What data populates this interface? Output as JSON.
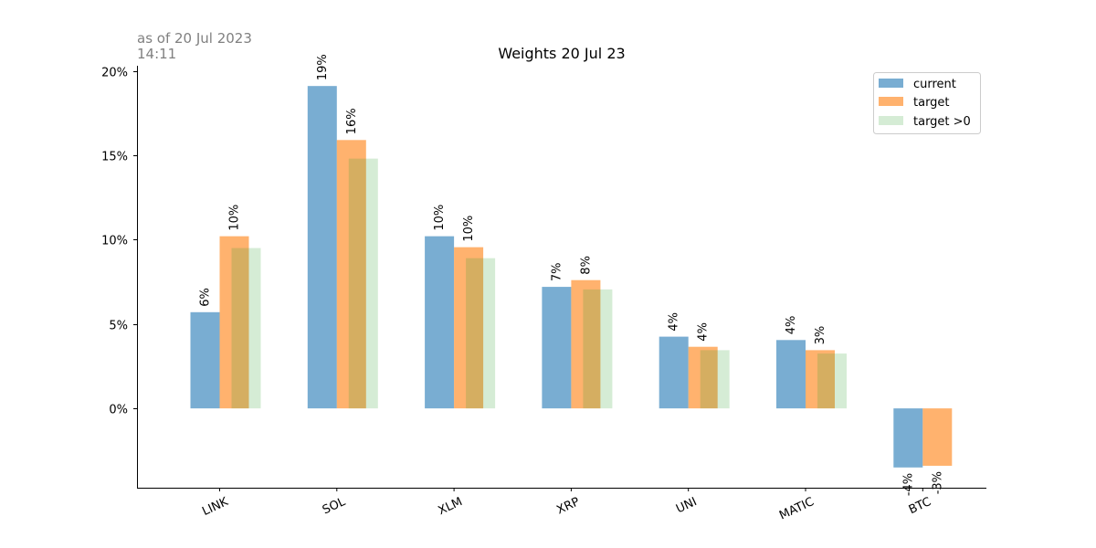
{
  "timestamp": {
    "line1": "as of 20 Jul 2023",
    "line2": "14:11"
  },
  "chart_data": {
    "type": "bar",
    "title": "Weights 20 Jul 23",
    "categories": [
      "LINK",
      "SOL",
      "XLM",
      "XRP",
      "UNI",
      "MATIC",
      "BTC"
    ],
    "series": [
      {
        "name": "current",
        "color": "#1f77b4",
        "alpha": 0.6,
        "values": [
          5.7,
          19.1,
          10.2,
          7.2,
          4.25,
          4.05,
          -3.5
        ],
        "labels": [
          "6%",
          "19%",
          "10%",
          "7%",
          "4%",
          "4%",
          "-4%"
        ]
      },
      {
        "name": "target",
        "color": "#ff7f0e",
        "alpha": 0.6,
        "values": [
          10.2,
          15.9,
          9.55,
          7.6,
          3.65,
          3.45,
          -3.4
        ],
        "labels": [
          "10%",
          "16%",
          "10%",
          "8%",
          "4%",
          "3%",
          "-3%"
        ]
      },
      {
        "name": "target >0",
        "color": "#2ca02c",
        "alpha": 0.2,
        "values": [
          9.5,
          14.8,
          8.9,
          7.05,
          3.45,
          3.25,
          null
        ]
      }
    ],
    "ylim": [
      -4.7,
      20.3
    ],
    "yticks": [
      0,
      5,
      10,
      15,
      20
    ],
    "ytick_labels": [
      "0%",
      "5%",
      "10%",
      "15%",
      "20%"
    ],
    "legend_position": "top-right",
    "xtick_rotation": 25
  }
}
